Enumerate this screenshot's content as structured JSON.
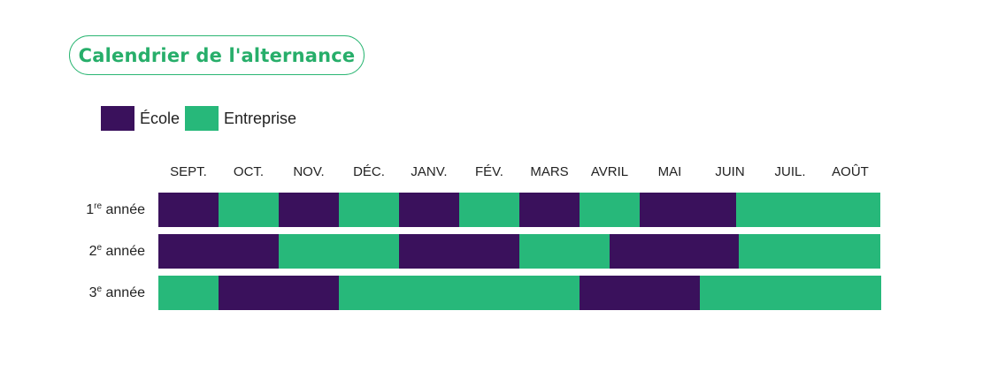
{
  "title": "Calendrier de l'alternance",
  "legend": {
    "ecole": {
      "label": "École",
      "color": "#3a115c"
    },
    "entreprise": {
      "label": "Entreprise",
      "color": "#27b87a"
    }
  },
  "chart_data": {
    "type": "bar",
    "orientation": "horizontal-timeline",
    "categories": [
      "SEPT.",
      "OCT.",
      "NOV.",
      "DÉC.",
      "JANV.",
      "FÉV.",
      "MARS",
      "AVRIL",
      "MAI",
      "JUIN",
      "JUIL.",
      "AOÛT"
    ],
    "rows": [
      {
        "num": "1",
        "sup": "re",
        "suffix": " année",
        "segments": [
          {
            "start": 0,
            "end": 1,
            "type": "ecole"
          },
          {
            "start": 1,
            "end": 2,
            "type": "entreprise"
          },
          {
            "start": 2,
            "end": 3,
            "type": "ecole"
          },
          {
            "start": 3,
            "end": 4,
            "type": "entreprise"
          },
          {
            "start": 4,
            "end": 5,
            "type": "ecole"
          },
          {
            "start": 5,
            "end": 6,
            "type": "entreprise"
          },
          {
            "start": 6,
            "end": 7,
            "type": "ecole"
          },
          {
            "start": 7,
            "end": 8,
            "type": "entreprise"
          },
          {
            "start": 8,
            "end": 9.6,
            "type": "ecole"
          },
          {
            "start": 9.6,
            "end": 12,
            "type": "entreprise"
          }
        ]
      },
      {
        "num": "2",
        "sup": "e",
        "suffix": " année",
        "segments": [
          {
            "start": 0,
            "end": 2,
            "type": "ecole"
          },
          {
            "start": 2,
            "end": 4,
            "type": "entreprise"
          },
          {
            "start": 4,
            "end": 6,
            "type": "ecole"
          },
          {
            "start": 6,
            "end": 7.5,
            "type": "entreprise"
          },
          {
            "start": 7.5,
            "end": 9.65,
            "type": "ecole"
          },
          {
            "start": 9.65,
            "end": 12,
            "type": "entreprise"
          }
        ]
      },
      {
        "num": "3",
        "sup": "e",
        "suffix": " année",
        "segments": [
          {
            "start": 0,
            "end": 1,
            "type": "entreprise"
          },
          {
            "start": 1,
            "end": 3,
            "type": "ecole"
          },
          {
            "start": 3,
            "end": 7,
            "type": "entreprise"
          },
          {
            "start": 7,
            "end": 9,
            "type": "ecole"
          },
          {
            "start": 9,
            "end": 12,
            "type": "entreprise"
          }
        ]
      }
    ]
  }
}
